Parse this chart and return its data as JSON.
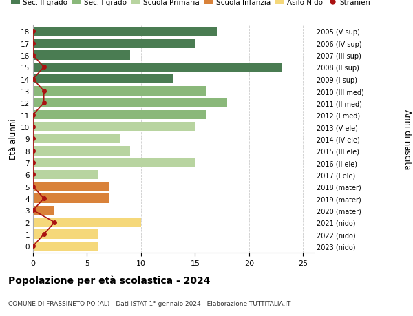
{
  "ages": [
    18,
    17,
    16,
    15,
    14,
    13,
    12,
    11,
    10,
    9,
    8,
    7,
    6,
    5,
    4,
    3,
    2,
    1,
    0
  ],
  "right_labels": [
    "2005 (V sup)",
    "2006 (IV sup)",
    "2007 (III sup)",
    "2008 (II sup)",
    "2009 (I sup)",
    "2010 (III med)",
    "2011 (II med)",
    "2012 (I med)",
    "2013 (V ele)",
    "2014 (IV ele)",
    "2015 (III ele)",
    "2016 (II ele)",
    "2017 (I ele)",
    "2018 (mater)",
    "2019 (mater)",
    "2020 (mater)",
    "2021 (nido)",
    "2022 (nido)",
    "2023 (nido)"
  ],
  "bar_values": [
    17,
    15,
    9,
    23,
    13,
    16,
    18,
    16,
    15,
    8,
    9,
    15,
    6,
    7,
    7,
    2,
    10,
    6,
    6
  ],
  "bar_colors": [
    "#4a7c52",
    "#4a7c52",
    "#4a7c52",
    "#4a7c52",
    "#4a7c52",
    "#8ab87a",
    "#8ab87a",
    "#8ab87a",
    "#b8d4a0",
    "#b8d4a0",
    "#b8d4a0",
    "#b8d4a0",
    "#b8d4a0",
    "#d9823a",
    "#d9823a",
    "#d9823a",
    "#f5d87a",
    "#f5d87a",
    "#f5d87a"
  ],
  "stranieri_x": [
    0,
    0,
    0,
    1,
    0,
    1,
    1,
    0,
    0,
    0,
    0,
    0,
    0,
    0,
    1,
    0,
    2,
    1,
    0
  ],
  "xlim": [
    0,
    26
  ],
  "ylabel_left": "Età alunni",
  "ylabel_right": "Anni di nascita",
  "title": "Popolazione per età scolastica - 2024",
  "subtitle": "COMUNE DI FRASSINETO PO (AL) - Dati ISTAT 1° gennaio 2024 - Elaborazione TUTTITALIA.IT",
  "legend_labels": [
    "Sec. II grado",
    "Sec. I grado",
    "Scuola Primaria",
    "Scuola Infanzia",
    "Asilo Nido",
    "Stranieri"
  ],
  "legend_colors": [
    "#4a7c52",
    "#8ab87a",
    "#b8d4a0",
    "#d9823a",
    "#f5d87a",
    "#aa1111"
  ],
  "bg_color": "#ffffff",
  "grid_color": "#cccccc",
  "bar_height": 0.78,
  "stranieri_color": "#aa1111",
  "stranieri_linewidth": 1.2,
  "stranieri_markersize": 5
}
